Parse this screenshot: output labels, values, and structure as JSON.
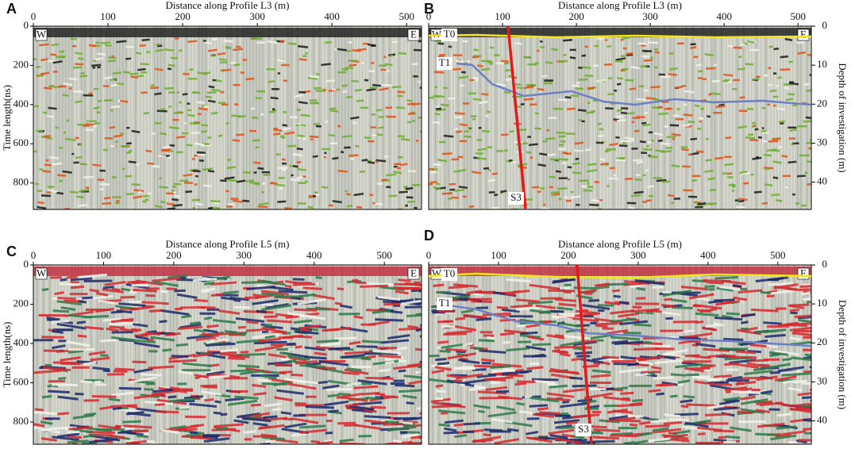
{
  "panels": [
    {
      "label": "A",
      "x_title": "Distance along Profile L3 (m)",
      "y_title": "Time length(ns)",
      "xlim": [
        0,
        520
      ],
      "xticks": [
        0,
        100,
        200,
        300,
        400,
        500
      ],
      "ylim": [
        0,
        935
      ],
      "yticks": [
        0,
        200,
        400,
        600,
        800
      ],
      "corner_left": "W",
      "corner_right": "E"
    },
    {
      "label": "B",
      "x_title": "Distance along Profile L3 (m)",
      "y2_title": "Depth of investigation (m)",
      "xlim": [
        0,
        518
      ],
      "xticks": [
        0,
        100,
        200,
        300,
        400,
        500
      ],
      "y2lim": [
        0,
        47
      ],
      "y2ticks": [
        0,
        10,
        20,
        30,
        40
      ],
      "corner_left": "W",
      "corner_right": "E",
      "reflector_top": "T0",
      "reflector_lower": "T1",
      "fault": "S3"
    },
    {
      "label": "C",
      "x_title": "Distance along Profile L5 (m)",
      "y_title": "Time length(ns)",
      "xlim": [
        0,
        553
      ],
      "xticks": [
        0,
        100,
        200,
        300,
        400,
        500
      ],
      "ylim": [
        0,
        913
      ],
      "yticks": [
        0,
        200,
        400,
        600,
        800
      ],
      "corner_left": "W",
      "corner_right": "E"
    },
    {
      "label": "D",
      "x_title": "Distance along Profile L5 (m)",
      "y2_title": "Depth of investigation (m)",
      "xlim": [
        0,
        548
      ],
      "xticks": [
        0,
        100,
        200,
        300,
        400,
        500
      ],
      "y2lim": [
        0,
        46
      ],
      "y2ticks": [
        0,
        10,
        20,
        30,
        40
      ],
      "corner_left": "W",
      "corner_right": "E",
      "reflector_top": "T0",
      "reflector_lower": "T1",
      "fault": "S3"
    }
  ]
}
